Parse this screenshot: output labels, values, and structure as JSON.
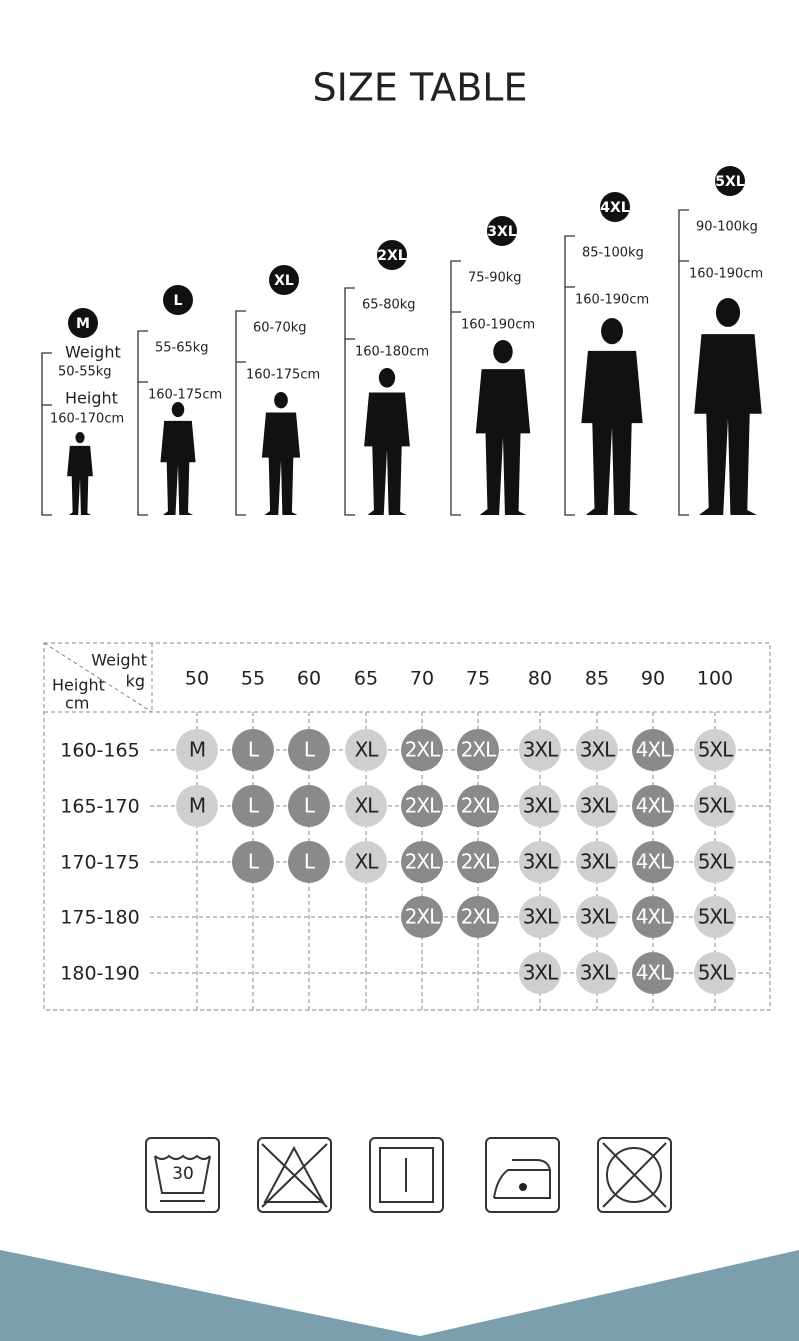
{
  "title": "SIZE TABLE",
  "figure_labels": {
    "weight": "Weight",
    "height": "Height"
  },
  "figures": [
    {
      "size": "M",
      "weight": "50-55kg",
      "height": "160-170cm"
    },
    {
      "size": "L",
      "weight": "55-65kg",
      "height": "160-175cm"
    },
    {
      "size": "XL",
      "weight": "60-70kg",
      "height": "160-175cm"
    },
    {
      "size": "2XL",
      "weight": "65-80kg",
      "height": "160-180cm"
    },
    {
      "size": "3XL",
      "weight": "75-90kg",
      "height": "160-190cm"
    },
    {
      "size": "4XL",
      "weight": "85-100kg",
      "height": "160-190cm"
    },
    {
      "size": "5XL",
      "weight": "90-100kg",
      "height": "160-190cm"
    }
  ],
  "table": {
    "corner": {
      "weight": "Weight",
      "weight_unit": "kg",
      "height": "Height",
      "height_unit": "cm"
    },
    "columns": [
      50,
      55,
      60,
      65,
      70,
      75,
      80,
      85,
      90,
      100
    ],
    "rows": [
      {
        "height": "160-165",
        "cells": [
          "M",
          "L",
          "L",
          "XL",
          "2XL",
          "2XL",
          "3XL",
          "3XL",
          "4XL",
          "5XL"
        ]
      },
      {
        "height": "165-170",
        "cells": [
          "M",
          "L",
          "L",
          "XL",
          "2XL",
          "2XL",
          "3XL",
          "3XL",
          "4XL",
          "5XL"
        ]
      },
      {
        "height": "170-175",
        "cells": [
          null,
          "L",
          "L",
          "XL",
          "2XL",
          "2XL",
          "3XL",
          "3XL",
          "4XL",
          "5XL"
        ]
      },
      {
        "height": "175-180",
        "cells": [
          null,
          null,
          null,
          null,
          "2XL",
          "2XL",
          "3XL",
          "3XL",
          "4XL",
          "5XL"
        ]
      },
      {
        "height": "180-190",
        "cells": [
          null,
          null,
          null,
          null,
          null,
          null,
          "3XL",
          "3XL",
          "4XL",
          "5XL"
        ]
      }
    ]
  },
  "care": {
    "wash_temp": "30"
  }
}
